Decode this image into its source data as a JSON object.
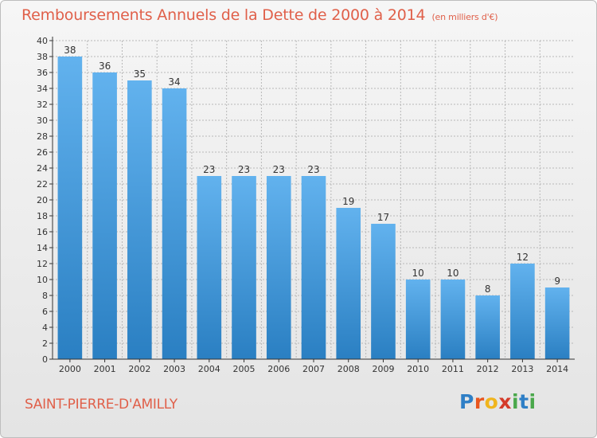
{
  "title": "Remboursements Annuels de la Dette de 2000 à 2014",
  "unit": "(en milliers d'€)",
  "city": "SAINT-PIERRE-D'AMILLY",
  "logo": {
    "letters": [
      "P",
      "r",
      "o",
      "x",
      "i",
      "t",
      "i"
    ],
    "colors": [
      "#2f7fc6",
      "#e8561e",
      "#f0b51e",
      "#d43b2a",
      "#4aa84b",
      "#2f7fc6",
      "#4aa84b"
    ]
  },
  "colors": {
    "bar_light": "#62b2ee",
    "bar_dark": "#2a7fc2",
    "title": "#e0604a",
    "axis": "#333333",
    "grid": "#b8b8b8"
  },
  "chart_data": {
    "type": "bar",
    "categories": [
      "2000",
      "2001",
      "2002",
      "2003",
      "2004",
      "2005",
      "2006",
      "2007",
      "2008",
      "2009",
      "2010",
      "2011",
      "2012",
      "2013",
      "2014"
    ],
    "values": [
      38,
      36,
      35,
      34,
      23,
      23,
      23,
      23,
      19,
      17,
      10,
      10,
      8,
      12,
      9
    ],
    "ylim": [
      0,
      40
    ],
    "yticks": [
      0,
      2,
      4,
      6,
      8,
      10,
      12,
      14,
      16,
      18,
      20,
      22,
      24,
      26,
      28,
      30,
      32,
      34,
      36,
      38,
      40
    ],
    "grid": true,
    "legend": "none"
  }
}
